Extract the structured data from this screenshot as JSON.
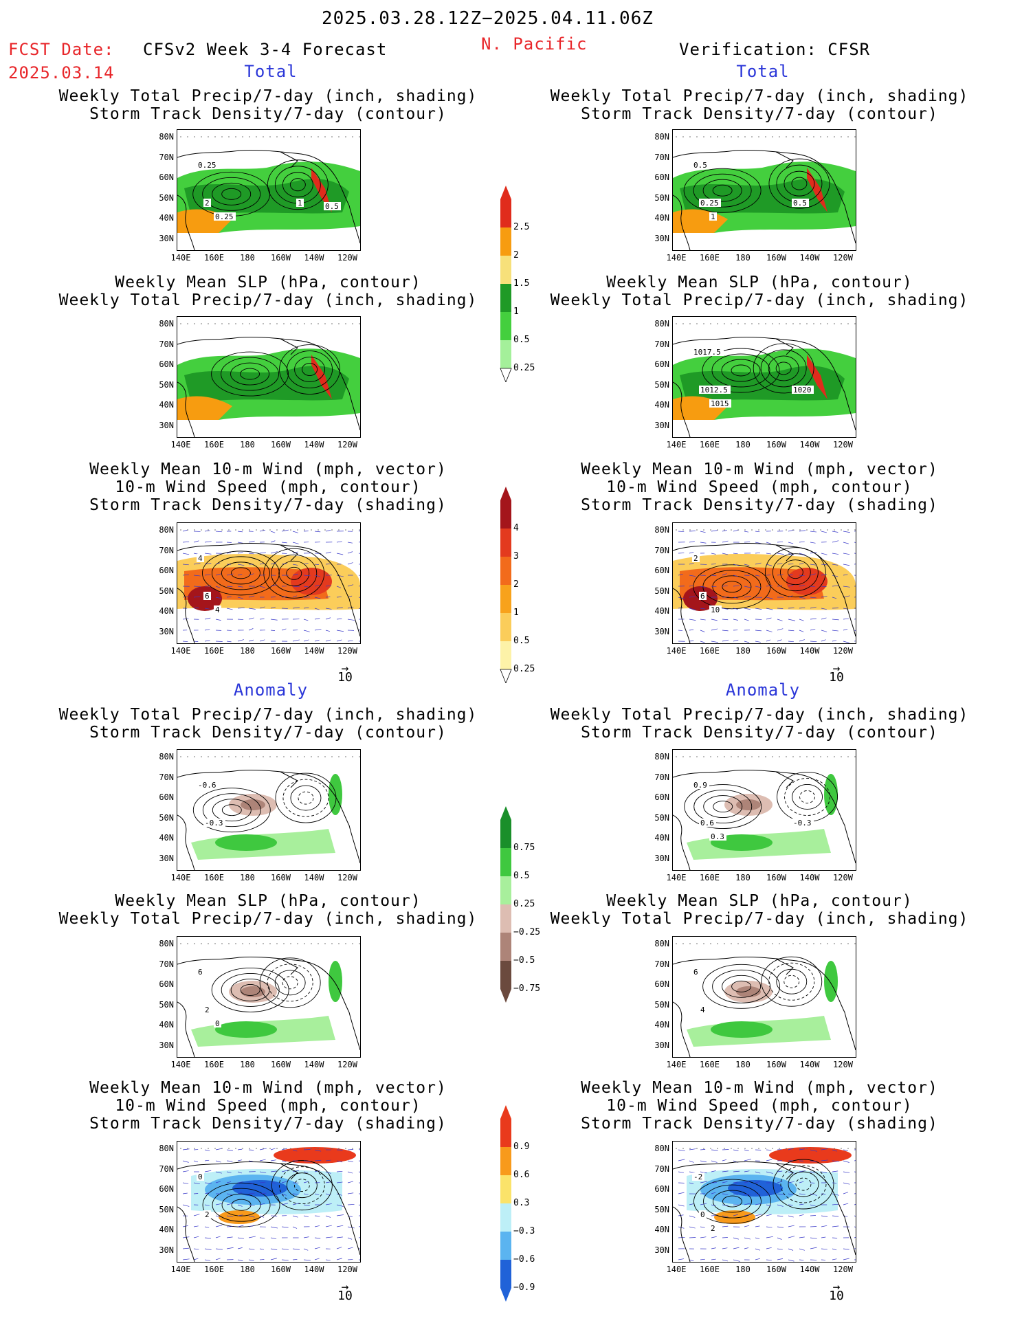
{
  "header": {
    "period": "2025.03.28.12Z−2025.04.11.06Z",
    "fcst_label": "FCST Date:",
    "fcst_date": "2025.03.14",
    "model_title": "CFSv2 Week 3-4 Forecast",
    "region": "N. Pacific",
    "verification": "Verification: CFSR"
  },
  "sections": {
    "total": "Total",
    "anomaly": "Anomaly"
  },
  "titles": {
    "precip_storm": [
      "Weekly Total Precip/7-day (inch, shading)",
      "Storm Track Density/7-day (contour)"
    ],
    "slp_precip": [
      "Weekly Mean SLP (hPa, contour)",
      "Weekly Total Precip/7-day (inch, shading)"
    ],
    "wind": [
      "Weekly Mean 10-m Wind (mph, vector)",
      "10-m Wind Speed (mph, contour)",
      "Storm Track Density/7-day (shading)"
    ]
  },
  "axes": {
    "lat": [
      "80N",
      "70N",
      "60N",
      "50N",
      "40N",
      "30N"
    ],
    "lon": [
      "140E",
      "160E",
      "180",
      "160W",
      "140W",
      "120W"
    ]
  },
  "vector_ref": "10",
  "contour_labels": {
    "fc_total_precip": [
      "0.25",
      "2",
      "0.25",
      "1",
      "0.5"
    ],
    "obs_total_precip": [
      "0.5",
      "0.25",
      "1",
      "0.5"
    ],
    "obs_total_slp": [
      "1017.5",
      "1012.5",
      "1015",
      "1020"
    ],
    "fc_total_wind": [
      "4",
      "6",
      "4"
    ],
    "obs_total_wind": [
      "2",
      "6",
      "10"
    ],
    "fc_anom_precip": [
      "-0.6",
      "-0.3"
    ],
    "obs_anom_precip": [
      "0.9",
      "0.6",
      "0.3",
      "-0.3"
    ],
    "fc_anom_slp": [
      "6",
      "2",
      "0"
    ],
    "obs_anom_slp": [
      "6",
      "4"
    ],
    "fc_anom_wind": [
      "0",
      "2"
    ],
    "obs_anom_wind": [
      "-2",
      "0",
      "2"
    ]
  },
  "colorbars": {
    "precip_total": [
      "2.5",
      "2",
      "1.5",
      "1",
      "0.5",
      "0.25"
    ],
    "storm_total": [
      "4",
      "3",
      "2",
      "1",
      "0.5",
      "0.25"
    ],
    "precip_anom": [
      "0.75",
      "0.5",
      "0.25",
      "−0.25",
      "−0.5",
      "−0.75"
    ],
    "storm_anom": [
      "0.9",
      "0.6",
      "0.3",
      "−0.3",
      "−0.6",
      "−0.9"
    ]
  },
  "colors": {
    "precip_total": [
      "#e02c1c",
      "#f79c10",
      "#f7e07a",
      "#1f9a26",
      "#44cf3e",
      "#a4f09a"
    ],
    "storm_total": [
      "#a4151b",
      "#e33a1e",
      "#f26b1b",
      "#f8a21b",
      "#fbcd5a",
      "#fdf2a8"
    ],
    "precip_anom": [
      "#1a8f2a",
      "#3fc83f",
      "#a8ef9c",
      "#ddbdb2",
      "#ad8478",
      "#6b4a3e"
    ],
    "storm_anom": [
      "#e93a1c",
      "#f89a1b",
      "#fbe36a",
      "#bdeff7",
      "#5bb4f0",
      "#2062d8"
    ]
  }
}
